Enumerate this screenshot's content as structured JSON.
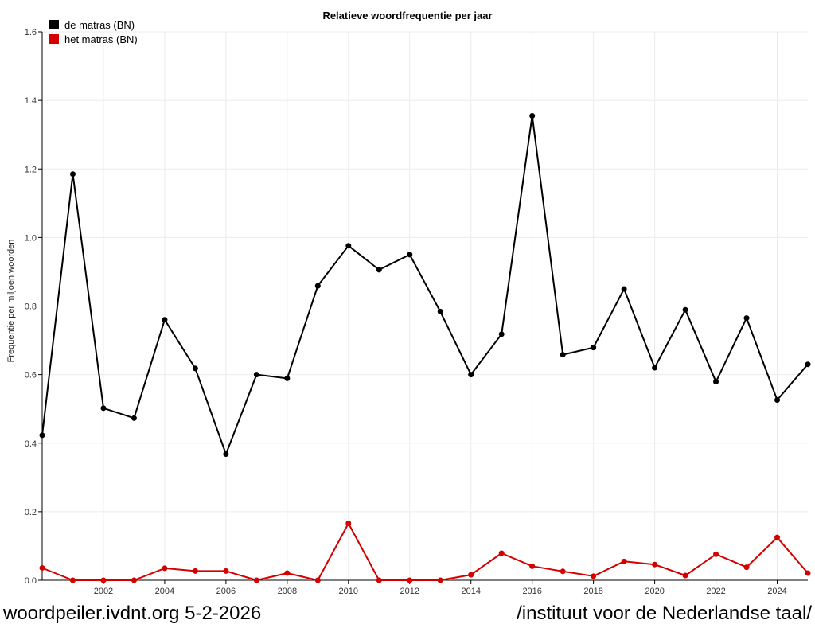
{
  "chart_data": {
    "type": "line",
    "title": "Relatieve woordfrequentie per jaar",
    "ylabel": "Frequentie per miljoen woorden",
    "xlabel": "",
    "x": [
      2000,
      2001,
      2002,
      2003,
      2004,
      2005,
      2006,
      2007,
      2008,
      2009,
      2010,
      2011,
      2012,
      2013,
      2014,
      2015,
      2016,
      2017,
      2018,
      2019,
      2020,
      2021,
      2022,
      2023,
      2024,
      2025
    ],
    "xlim": [
      2000,
      2025
    ],
    "ylim": [
      0,
      1.6
    ],
    "x_ticks": [
      "2002",
      "2004",
      "2006",
      "2008",
      "2010",
      "2012",
      "2014",
      "2016",
      "2018",
      "2020",
      "2022",
      "2024"
    ],
    "y_ticks": [
      "0.0",
      "0.2",
      "0.4",
      "0.6",
      "0.8",
      "1.0",
      "1.2",
      "1.4",
      "1.6"
    ],
    "grid": true,
    "legend_position": "top-left",
    "series": [
      {
        "name": "de matras (BN)",
        "color": "#000000",
        "values": [
          0.423,
          1.185,
          0.502,
          0.473,
          0.76,
          0.618,
          0.368,
          0.6,
          0.589,
          0.859,
          0.976,
          0.906,
          0.95,
          0.784,
          0.6,
          0.718,
          1.355,
          0.658,
          0.679,
          0.85,
          0.62,
          0.789,
          0.579,
          0.765,
          0.526,
          0.63
        ]
      },
      {
        "name": "het matras (BN)",
        "color": "#d40000",
        "values": [
          0.036,
          0.0,
          0.0,
          0.0,
          0.035,
          0.027,
          0.027,
          0.0,
          0.021,
          0.0,
          0.166,
          0.0,
          0.0,
          0.0,
          0.016,
          0.079,
          0.041,
          0.026,
          0.012,
          0.055,
          0.046,
          0.014,
          0.076,
          0.038,
          0.125,
          0.021
        ]
      }
    ]
  },
  "footer": {
    "left": "woordpeiler.ivdnt.org 5-2-2026",
    "right": "/instituut voor de Nederlandse taal/"
  }
}
